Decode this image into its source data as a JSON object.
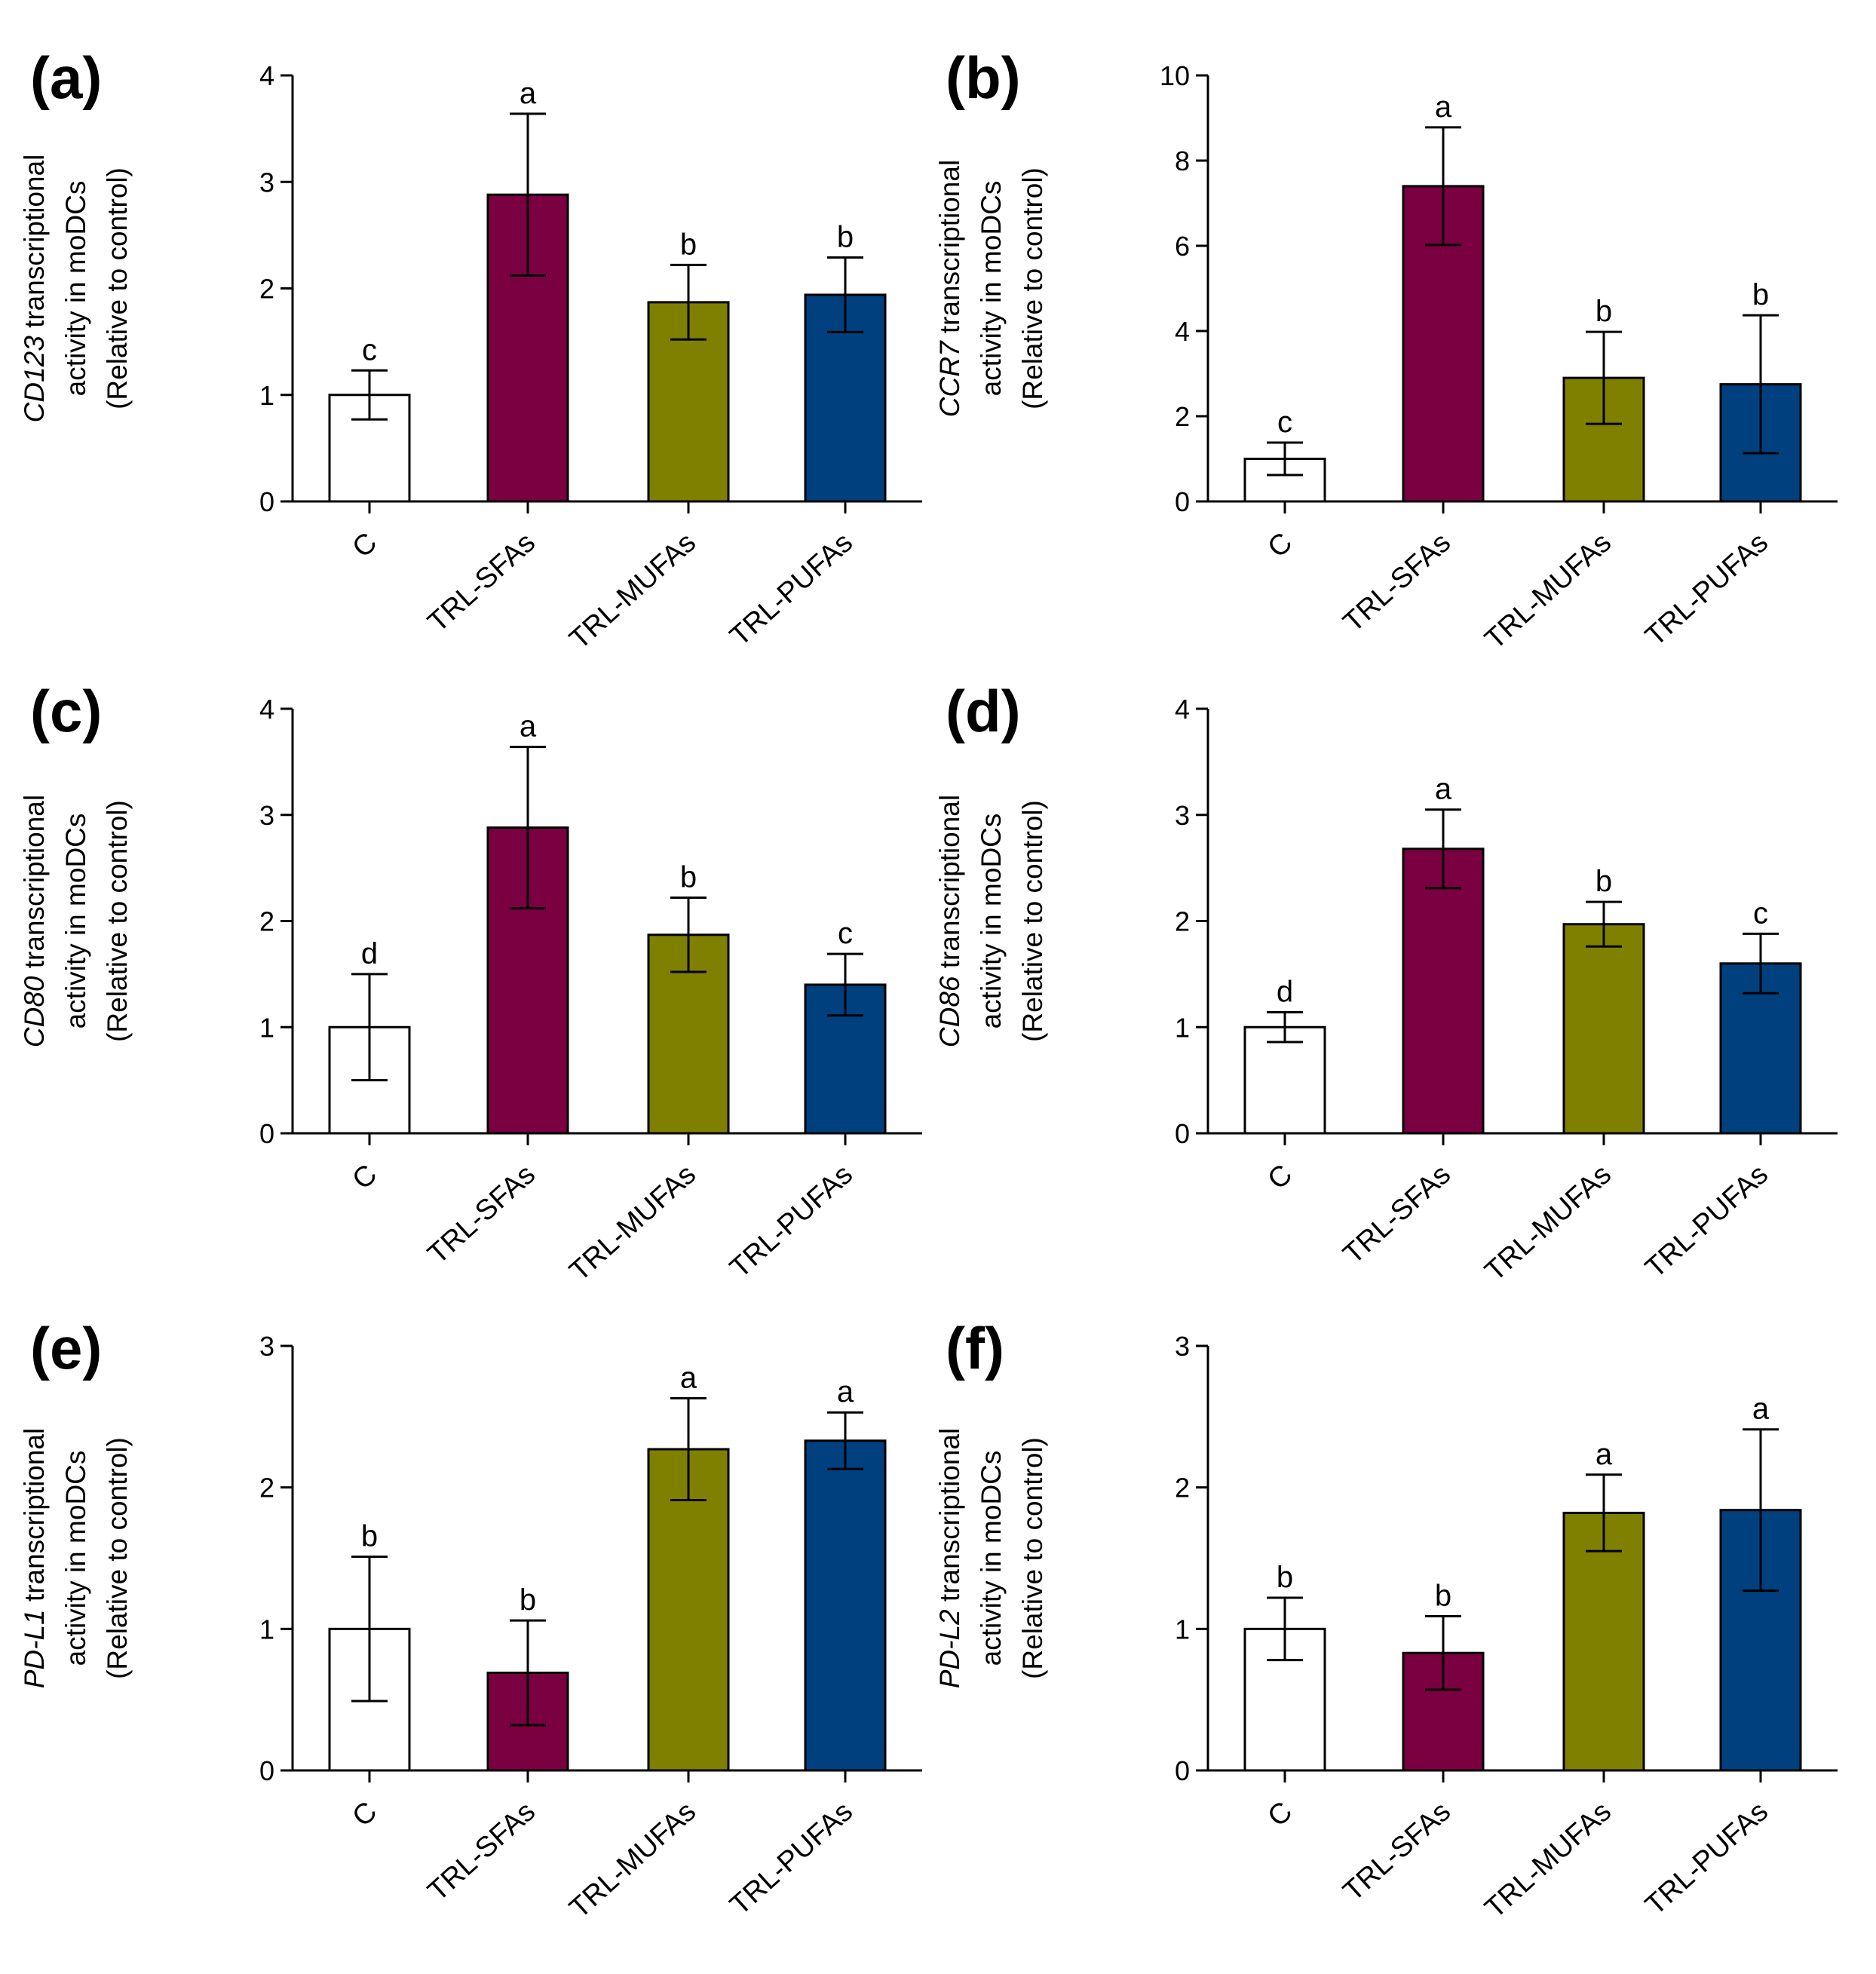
{
  "colors": {
    "C": "#ffffff",
    "TRL-SFAs": "#7b0041",
    "TRL-MUFAs": "#808000",
    "TRL-PUFAs": "#00407f",
    "axis": "#000000"
  },
  "chart_data": [
    {
      "type": "bar",
      "panel": "(a)",
      "gene": "CD123",
      "ylabel_rest": " transcriptional",
      "ylabel_line2": "activity in moDCs",
      "ylabel_line3": "(Relative to control)",
      "categories": [
        "C",
        "TRL-SFAs",
        "TRL-MUFAs",
        "TRL-PUFAs"
      ],
      "values": [
        1.0,
        2.88,
        1.87,
        1.94
      ],
      "errors": [
        0.23,
        0.76,
        0.35,
        0.35
      ],
      "significance": [
        "c",
        "a",
        "b",
        "b"
      ],
      "ylim": [
        0,
        4
      ],
      "yticks": [
        "0",
        "1",
        "2",
        "3",
        "4"
      ],
      "ytick_values": [
        0,
        1,
        2,
        3,
        4
      ]
    },
    {
      "type": "bar",
      "panel": "(b)",
      "gene": "CCR7",
      "ylabel_rest": " transcriptional",
      "ylabel_line2": "activity in moDCs",
      "ylabel_line3": "(Relative to control)",
      "categories": [
        "C",
        "TRL-SFAs",
        "TRL-MUFAs",
        "TRL-PUFAs"
      ],
      "values": [
        1.0,
        7.4,
        2.9,
        2.75
      ],
      "errors": [
        0.38,
        1.38,
        1.08,
        1.62
      ],
      "significance": [
        "c",
        "a",
        "b",
        "b"
      ],
      "ylim": [
        0,
        10
      ],
      "yticks": [
        "0",
        "2",
        "4",
        "6",
        "8",
        "10"
      ],
      "ytick_values": [
        0,
        2,
        4,
        6,
        8,
        10
      ]
    },
    {
      "type": "bar",
      "panel": "(c)",
      "gene": "CD80",
      "ylabel_rest": " transcriptional",
      "ylabel_line2": "activity in moDCs",
      "ylabel_line3": "(Relative to control)",
      "categories": [
        "C",
        "TRL-SFAs",
        "TRL-MUFAs",
        "TRL-PUFAs"
      ],
      "values": [
        1.0,
        2.88,
        1.87,
        1.4
      ],
      "errors": [
        0.5,
        0.76,
        0.35,
        0.29
      ],
      "significance": [
        "d",
        "a",
        "b",
        "c"
      ],
      "ylim": [
        0,
        4
      ],
      "yticks": [
        "0",
        "1",
        "2",
        "3",
        "4"
      ],
      "ytick_values": [
        0,
        1,
        2,
        3,
        4
      ]
    },
    {
      "type": "bar",
      "panel": "(d)",
      "gene": "CD86",
      "ylabel_rest": " transcriptional",
      "ylabel_line2": "activity in moDCs",
      "ylabel_line3": "(Relative to control)",
      "categories": [
        "C",
        "TRL-SFAs",
        "TRL-MUFAs",
        "TRL-PUFAs"
      ],
      "values": [
        1.0,
        2.68,
        1.97,
        1.6
      ],
      "errors": [
        0.14,
        0.37,
        0.21,
        0.28
      ],
      "significance": [
        "d",
        "a",
        "b",
        "c"
      ],
      "ylim": [
        0,
        4
      ],
      "yticks": [
        "0",
        "1",
        "2",
        "3",
        "4"
      ],
      "ytick_values": [
        0,
        1,
        2,
        3,
        4
      ]
    },
    {
      "type": "bar",
      "panel": "(e)",
      "gene": "PD-L1",
      "ylabel_rest": " transcriptional",
      "ylabel_line2": "activity in moDCs",
      "ylabel_line3": "(Relative to control)",
      "categories": [
        "C",
        "TRL-SFAs",
        "TRL-MUFAs",
        "TRL-PUFAs"
      ],
      "values": [
        1.0,
        0.69,
        2.27,
        2.33
      ],
      "errors": [
        0.51,
        0.37,
        0.36,
        0.2
      ],
      "significance": [
        "b",
        "b",
        "a",
        "a"
      ],
      "ylim": [
        0,
        3
      ],
      "yticks": [
        "0",
        "1",
        "2",
        "3"
      ],
      "ytick_values": [
        0,
        1,
        2,
        3
      ]
    },
    {
      "type": "bar",
      "panel": "(f)",
      "gene": "PD-L2",
      "ylabel_rest": " transcriptional",
      "ylabel_line2": "activity in moDCs",
      "ylabel_line3": "(Relative to control)",
      "categories": [
        "C",
        "TRL-SFAs",
        "TRL-MUFAs",
        "TRL-PUFAs"
      ],
      "values": [
        1.0,
        0.83,
        1.82,
        1.84
      ],
      "errors": [
        0.22,
        0.26,
        0.27,
        0.57
      ],
      "significance": [
        "b",
        "b",
        "a",
        "a"
      ],
      "ylim": [
        0,
        3
      ],
      "yticks": [
        "0",
        "1",
        "2",
        "3"
      ],
      "ytick_values": [
        0,
        1,
        2,
        3
      ]
    }
  ]
}
